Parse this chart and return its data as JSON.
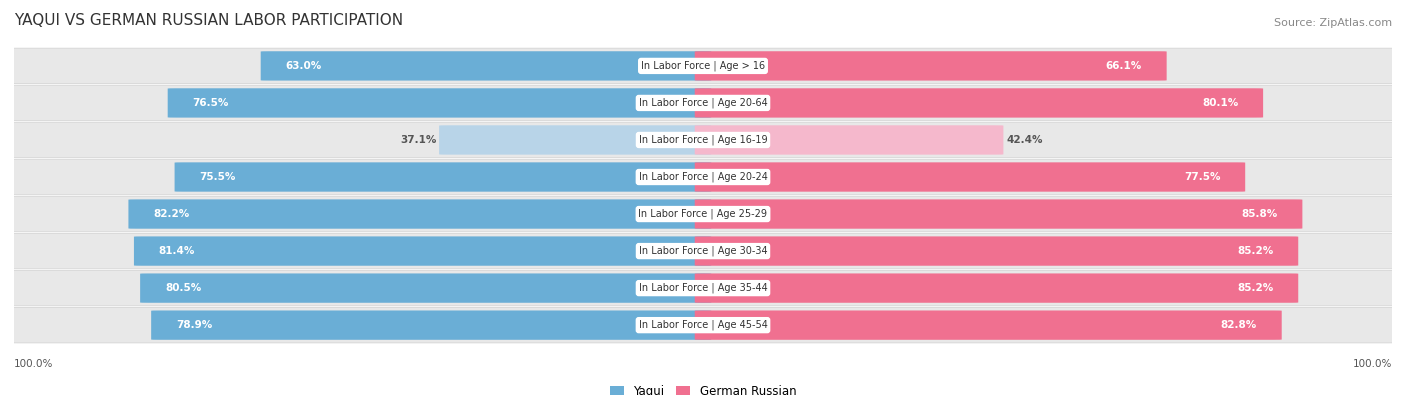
{
  "title": "YAQUI VS GERMAN RUSSIAN LABOR PARTICIPATION",
  "source": "Source: ZipAtlas.com",
  "categories": [
    "In Labor Force | Age > 16",
    "In Labor Force | Age 20-64",
    "In Labor Force | Age 16-19",
    "In Labor Force | Age 20-24",
    "In Labor Force | Age 25-29",
    "In Labor Force | Age 30-34",
    "In Labor Force | Age 35-44",
    "In Labor Force | Age 45-54"
  ],
  "yaqui_values": [
    63.0,
    76.5,
    37.1,
    75.5,
    82.2,
    81.4,
    80.5,
    78.9
  ],
  "german_values": [
    66.1,
    80.1,
    42.4,
    77.5,
    85.8,
    85.2,
    85.2,
    82.8
  ],
  "yaqui_color": "#6aaed6",
  "yaqui_color_light": "#b8d4e8",
  "german_color": "#f07090",
  "german_color_light": "#f5b8cc",
  "row_bg_color": "#e8e8e8",
  "row_border_color": "#cccccc",
  "label_white": "#ffffff",
  "label_dark": "#555555",
  "center_box_color": "#ffffff",
  "max_value": 100.0,
  "legend_yaqui": "Yaqui",
  "legend_german": "German Russian",
  "title_fontsize": 11,
  "source_fontsize": 8,
  "bar_label_fontsize": 7.5,
  "category_fontsize": 7,
  "legend_fontsize": 8.5,
  "axis_label_fontsize": 7.5,
  "light_row_index": 2
}
